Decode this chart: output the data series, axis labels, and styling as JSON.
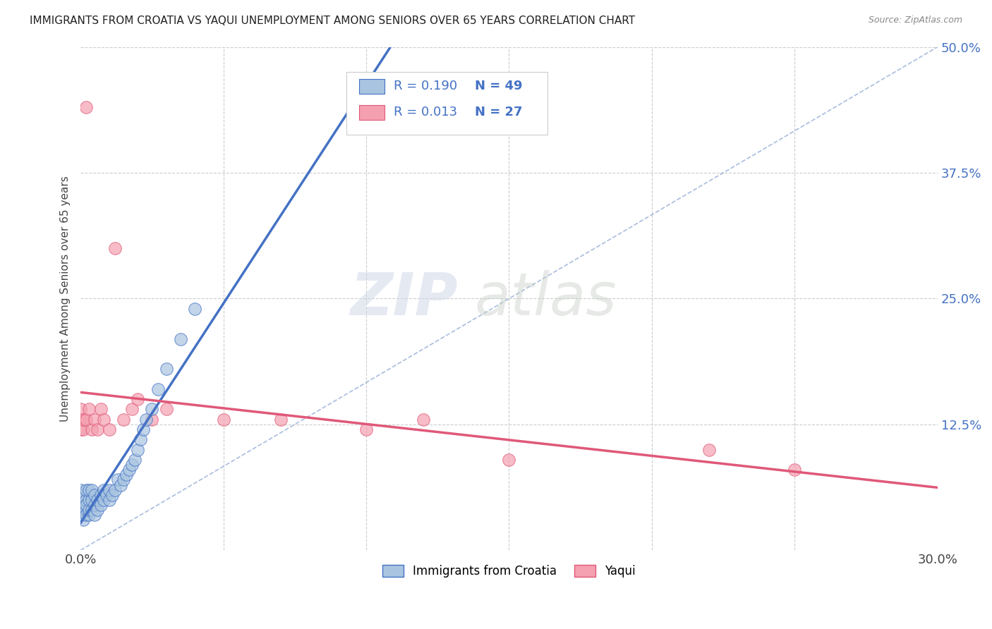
{
  "title": "IMMIGRANTS FROM CROATIA VS YAQUI UNEMPLOYMENT AMONG SENIORS OVER 65 YEARS CORRELATION CHART",
  "source": "Source: ZipAtlas.com",
  "ylabel": "Unemployment Among Seniors over 65 years",
  "xlim": [
    0.0,
    0.3
  ],
  "ylim": [
    0.0,
    0.5
  ],
  "xticks": [
    0.0,
    0.05,
    0.1,
    0.15,
    0.2,
    0.25,
    0.3
  ],
  "xticklabels": [
    "0.0%",
    "",
    "",
    "",
    "",
    "",
    "30.0%"
  ],
  "yticks": [
    0.0,
    0.125,
    0.25,
    0.375,
    0.5
  ],
  "yticklabels": [
    "",
    "12.5%",
    "25.0%",
    "37.5%",
    "50.0%"
  ],
  "legend_labels": [
    "Immigrants from Croatia",
    "Yaqui"
  ],
  "legend_r": [
    "0.190",
    "0.013"
  ],
  "legend_n": [
    "49",
    "27"
  ],
  "scatter_color_croatia": "#a8c4e0",
  "scatter_color_yaqui": "#f4a0b0",
  "line_color_croatia": "#4472c4",
  "line_color_yaqui": "#e05878",
  "tick_color": "#4472c4",
  "background_color": "#ffffff",
  "grid_color": "#cccccc",
  "diag_line_color": "#7090c8",
  "croatia_x": [
    0.0,
    0.0,
    0.0,
    0.001,
    0.001,
    0.001,
    0.001,
    0.002,
    0.002,
    0.002,
    0.002,
    0.002,
    0.003,
    0.003,
    0.003,
    0.003,
    0.004,
    0.004,
    0.004,
    0.005,
    0.005,
    0.005,
    0.006,
    0.006,
    0.007,
    0.007,
    0.008,
    0.008,
    0.009,
    0.01,
    0.01,
    0.011,
    0.012,
    0.013,
    0.014,
    0.015,
    0.016,
    0.017,
    0.018,
    0.019,
    0.02,
    0.021,
    0.022,
    0.023,
    0.025,
    0.027,
    0.03,
    0.035,
    0.04
  ],
  "croatia_y": [
    0.05,
    0.04,
    0.06,
    0.035,
    0.045,
    0.055,
    0.03,
    0.04,
    0.05,
    0.035,
    0.045,
    0.06,
    0.035,
    0.04,
    0.05,
    0.06,
    0.04,
    0.05,
    0.06,
    0.035,
    0.045,
    0.055,
    0.04,
    0.05,
    0.045,
    0.055,
    0.05,
    0.06,
    0.055,
    0.05,
    0.06,
    0.055,
    0.06,
    0.07,
    0.065,
    0.07,
    0.075,
    0.08,
    0.085,
    0.09,
    0.1,
    0.11,
    0.12,
    0.13,
    0.14,
    0.16,
    0.18,
    0.21,
    0.24
  ],
  "yaqui_x": [
    0.0,
    0.0,
    0.0,
    0.001,
    0.001,
    0.002,
    0.002,
    0.003,
    0.004,
    0.005,
    0.006,
    0.007,
    0.008,
    0.01,
    0.012,
    0.015,
    0.018,
    0.02,
    0.025,
    0.03,
    0.05,
    0.07,
    0.1,
    0.12,
    0.15,
    0.22,
    0.25
  ],
  "yaqui_y": [
    0.13,
    0.12,
    0.14,
    0.12,
    0.13,
    0.44,
    0.13,
    0.14,
    0.12,
    0.13,
    0.12,
    0.14,
    0.13,
    0.12,
    0.3,
    0.13,
    0.14,
    0.15,
    0.13,
    0.14,
    0.13,
    0.13,
    0.12,
    0.13,
    0.09,
    0.1,
    0.08
  ]
}
